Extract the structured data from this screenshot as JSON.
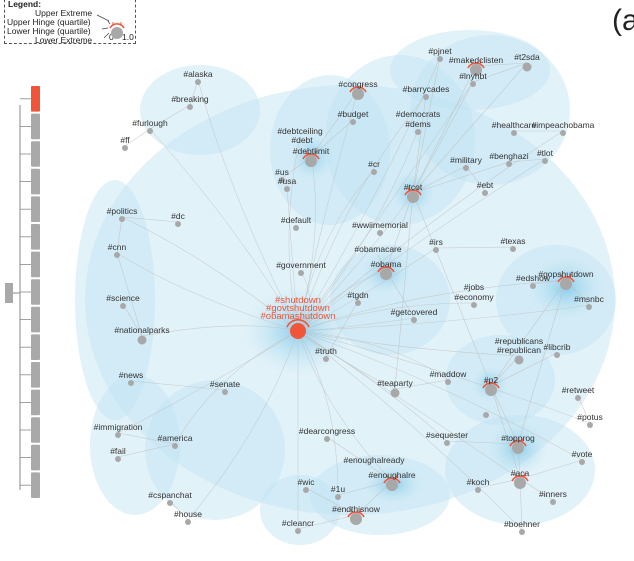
{
  "legend": {
    "title": "Legend:",
    "upper_extreme": "Upper Extreme",
    "upper_hinge": "Upper Hinge (quartile)",
    "lower_hinge": "Lower Hinge (quartile)",
    "lower_extreme": "Lower Extreme",
    "scale_min": "0",
    "scale_max": "1.0"
  },
  "panel_label": "(a",
  "colors": {
    "node": "#a8a8a8",
    "highlight": "#f0553a",
    "edge": "#bdbdbd",
    "halo": "#bfe3f2",
    "slider_bar": "#a9a9a9",
    "slider_active": "#f0553a"
  },
  "highlight_node": {
    "labels": [
      "#shutdown",
      "#govtshutdown",
      "#obamashutdown"
    ],
    "ticks": true
  },
  "nodes": [
    {
      "id": "alaska",
      "label": "#alaska"
    },
    {
      "id": "breaking",
      "label": "#breaking"
    },
    {
      "id": "furlough",
      "label": "#furlough"
    },
    {
      "id": "ff",
      "label": "#ff"
    },
    {
      "id": "politics",
      "label": "#politics"
    },
    {
      "id": "dc",
      "label": "#dc"
    },
    {
      "id": "cnn",
      "label": "#cnn"
    },
    {
      "id": "science",
      "label": "#science"
    },
    {
      "id": "nationalparks",
      "label": "#nationalparks"
    },
    {
      "id": "news",
      "label": "#news"
    },
    {
      "id": "immigration",
      "label": "#immigration"
    },
    {
      "id": "fail",
      "label": "#fail"
    },
    {
      "id": "america",
      "label": "#america"
    },
    {
      "id": "cspanchat",
      "label": "#cspanchat"
    },
    {
      "id": "house",
      "label": "#house"
    },
    {
      "id": "senate",
      "label": "#senate"
    },
    {
      "id": "congress",
      "label": "#congress",
      "ticks": true
    },
    {
      "id": "budget",
      "label": "#budget"
    },
    {
      "id": "debtceiling",
      "label": "#debtceiling"
    },
    {
      "id": "debt",
      "label": "#debt"
    },
    {
      "id": "debtlimit",
      "label": "#debtlimit",
      "ticks": true
    },
    {
      "id": "us",
      "label": "#us"
    },
    {
      "id": "usa",
      "label": "#usa"
    },
    {
      "id": "default",
      "label": "#default"
    },
    {
      "id": "cr",
      "label": "#cr"
    },
    {
      "id": "wwiimemorial",
      "label": "#wwiimemorial"
    },
    {
      "id": "government",
      "label": "#government"
    },
    {
      "id": "obamacare",
      "label": "#obamacare"
    },
    {
      "id": "obama",
      "label": "#obama",
      "ticks": true
    },
    {
      "id": "tgdn",
      "label": "#tgdn"
    },
    {
      "id": "getcovered",
      "label": "#getcovered"
    },
    {
      "id": "truth",
      "label": "#truth"
    },
    {
      "id": "pjnet",
      "label": "#pjnet"
    },
    {
      "id": "makedclisten",
      "label": "#makedclisten",
      "ticks": true
    },
    {
      "id": "lnyhbt",
      "label": "#lnyhbt"
    },
    {
      "id": "t2sda",
      "label": "#t2sda"
    },
    {
      "id": "barrycades",
      "label": "#barrycades"
    },
    {
      "id": "democrats",
      "label": "#democrats"
    },
    {
      "id": "dems",
      "label": "#dems"
    },
    {
      "id": "healthcare",
      "label": "#healthcare"
    },
    {
      "id": "impeachobama",
      "label": "#impeachobama"
    },
    {
      "id": "benghazi",
      "label": "#benghazi"
    },
    {
      "id": "tlot",
      "label": "#tlot"
    },
    {
      "id": "military",
      "label": "#military"
    },
    {
      "id": "tcot",
      "label": "#tcot",
      "ticks": true
    },
    {
      "id": "ebt",
      "label": "#ebt"
    },
    {
      "id": "irs",
      "label": "#irs"
    },
    {
      "id": "texas",
      "label": "#texas"
    },
    {
      "id": "gopshutdown",
      "label": "#gopshutdown",
      "ticks": true
    },
    {
      "id": "edshow",
      "label": "#edshow"
    },
    {
      "id": "msnbc",
      "label": "#msnbc"
    },
    {
      "id": "jobs",
      "label": "#jobs"
    },
    {
      "id": "economy",
      "label": "#economy"
    },
    {
      "id": "republicans",
      "label": "#republicans"
    },
    {
      "id": "republican",
      "label": "#republican"
    },
    {
      "id": "libcrib",
      "label": "#libcrib"
    },
    {
      "id": "maddow",
      "label": "#maddow"
    },
    {
      "id": "p2",
      "label": "#p2",
      "ticks": true
    },
    {
      "id": "teaparty",
      "label": "#teaparty"
    },
    {
      "id": "retweet",
      "label": "#retweet"
    },
    {
      "id": "potus",
      "label": "#potus"
    },
    {
      "id": "dearcongress",
      "label": "#dearcongress"
    },
    {
      "id": "sequester",
      "label": "#sequester"
    },
    {
      "id": "topprog",
      "label": "#topprog",
      "ticks": true
    },
    {
      "id": "vote",
      "label": "#vote"
    },
    {
      "id": "enoughalready",
      "label": "#enoughalready"
    },
    {
      "id": "enoughalre",
      "label": "#enoughalre",
      "ticks": true
    },
    {
      "id": "wic",
      "label": "#wic"
    },
    {
      "id": "1u",
      "label": "#1u"
    },
    {
      "id": "endthisnow",
      "label": "#endthisnow",
      "ticks": true
    },
    {
      "id": "cleancr",
      "label": "#cleancr"
    },
    {
      "id": "koch",
      "label": "#koch"
    },
    {
      "id": "aca",
      "label": "#aca",
      "ticks": true
    },
    {
      "id": "inners",
      "label": "#inners"
    },
    {
      "id": "boehner",
      "label": "#boehner"
    },
    {
      "id": "unnamed1",
      "label": ""
    }
  ],
  "slider": {
    "segments": 15,
    "active_index": 0
  }
}
